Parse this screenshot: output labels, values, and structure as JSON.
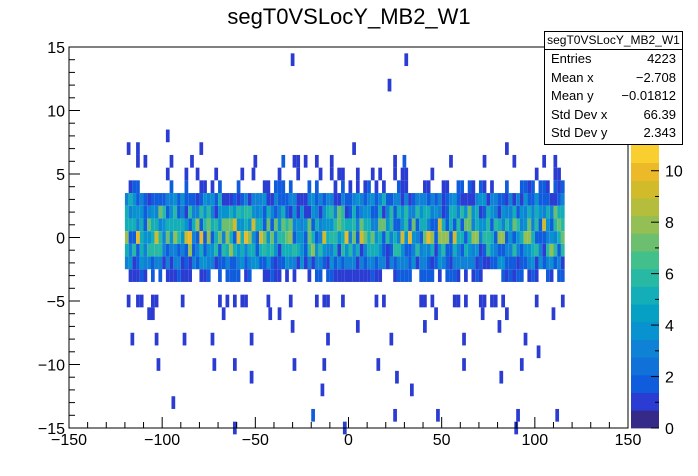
{
  "chart_data": {
    "type": "heatmap",
    "title": "segT0VSLocY_MB2_W1",
    "xlabel": "",
    "ylabel": "",
    "xlim": [
      -150,
      150
    ],
    "ylim": [
      -15,
      15
    ],
    "zlim": [
      0,
      11
    ],
    "x_ticks": [
      -150,
      -100,
      -50,
      0,
      50,
      100,
      150
    ],
    "x_tick_labels": [
      "−150",
      "−100",
      "−50",
      "0",
      "50",
      "100",
      "150"
    ],
    "y_ticks": [
      -15,
      -10,
      -5,
      0,
      5,
      10,
      15
    ],
    "y_tick_labels": [
      "−15",
      "−10",
      "−5",
      "0",
      "5",
      "10",
      "15"
    ],
    "z_ticks": [
      0,
      2,
      4,
      6,
      8,
      10
    ],
    "z_tick_labels": [
      "0",
      "2",
      "4",
      "6",
      "8",
      "10"
    ],
    "bin_width_x": 2,
    "bin_width_y": 1,
    "core_x_range": [
      -120,
      115
    ],
    "band_profile": [
      {
        "y": 1,
        "mean": 4.5
      },
      {
        "y": 0,
        "mean": 5.2
      },
      {
        "y": 2,
        "mean": 3.6
      },
      {
        "y": -1,
        "mean": 3.8
      },
      {
        "y": 3,
        "mean": 2.4
      },
      {
        "y": -2,
        "mean": 2.2
      },
      {
        "y": -3,
        "mean": 1.3
      },
      {
        "y": 4,
        "mean": 1.0
      }
    ],
    "sparse_bins": [
      {
        "x": -119,
        "y": 7,
        "z": 1
      },
      {
        "x": -114,
        "y": 7,
        "z": 1
      },
      {
        "x": -98,
        "y": 8,
        "z": 1
      },
      {
        "x": -85,
        "y": 6,
        "z": 1
      },
      {
        "x": -80,
        "y": 7,
        "z": 1
      },
      {
        "x": -51,
        "y": 6,
        "z": 1
      },
      {
        "x": -36,
        "y": 6,
        "z": 2
      },
      {
        "x": -24,
        "y": 6,
        "z": 1
      },
      {
        "x": 2,
        "y": 7,
        "z": 1
      },
      {
        "x": 29,
        "y": 6,
        "z": 2
      },
      {
        "x": 72,
        "y": 6,
        "z": 1
      },
      {
        "x": 84,
        "y": 7,
        "z": 1
      },
      {
        "x": 110,
        "y": 6,
        "z": 1
      },
      {
        "x": -31,
        "y": 14,
        "z": 1
      },
      {
        "x": 30,
        "y": 14,
        "z": 1
      },
      {
        "x": 21,
        "y": 12,
        "z": 1
      },
      {
        "x": -119,
        "y": -5,
        "z": 1
      },
      {
        "x": -108,
        "y": -6,
        "z": 1
      },
      {
        "x": -68,
        "y": -6,
        "z": 1
      },
      {
        "x": -43,
        "y": -6,
        "z": 1
      },
      {
        "x": 46,
        "y": -6,
        "z": 1
      },
      {
        "x": 71,
        "y": -6,
        "z": 1
      },
      {
        "x": 109,
        "y": -6,
        "z": 1
      },
      {
        "x": -117,
        "y": -8,
        "z": 1
      },
      {
        "x": -104,
        "y": -8,
        "z": 1
      },
      {
        "x": -89,
        "y": -8,
        "z": 1
      },
      {
        "x": -74,
        "y": -8,
        "z": 1
      },
      {
        "x": -53,
        "y": -8,
        "z": 1
      },
      {
        "x": -31,
        "y": -7,
        "z": 1
      },
      {
        "x": -12,
        "y": -8,
        "z": 1
      },
      {
        "x": 4,
        "y": -7,
        "z": 1
      },
      {
        "x": 22,
        "y": -8,
        "z": 1
      },
      {
        "x": 40,
        "y": -7,
        "z": 1
      },
      {
        "x": 61,
        "y": -8,
        "z": 1
      },
      {
        "x": 80,
        "y": -7,
        "z": 1
      },
      {
        "x": 94,
        "y": -8,
        "z": 1
      },
      {
        "x": -103,
        "y": -10,
        "z": 1
      },
      {
        "x": -73,
        "y": -10,
        "z": 1
      },
      {
        "x": -62,
        "y": -10,
        "z": 1
      },
      {
        "x": -30,
        "y": -10,
        "z": 1
      },
      {
        "x": -14,
        "y": -10,
        "z": 1
      },
      {
        "x": 15,
        "y": -10,
        "z": 1
      },
      {
        "x": 61,
        "y": -10,
        "z": 1
      },
      {
        "x": 92,
        "y": -10,
        "z": 1
      },
      {
        "x": 101,
        "y": -9,
        "z": 1
      },
      {
        "x": -53,
        "y": -11,
        "z": 1
      },
      {
        "x": 25,
        "y": -11,
        "z": 1
      },
      {
        "x": 81,
        "y": -11,
        "z": 1
      },
      {
        "x": -15,
        "y": -12,
        "z": 1
      },
      {
        "x": 33,
        "y": -12,
        "z": 1
      },
      {
        "x": -95,
        "y": -13,
        "z": 1
      },
      {
        "x": -20,
        "y": -14,
        "z": 2
      },
      {
        "x": 24,
        "y": -14,
        "z": 1
      },
      {
        "x": 47,
        "y": -14,
        "z": 1
      },
      {
        "x": 90,
        "y": -14,
        "z": 1
      },
      {
        "x": 111,
        "y": -14,
        "z": 1
      },
      {
        "x": -62,
        "y": -15,
        "z": 1
      },
      {
        "x": -3,
        "y": -15,
        "z": 1
      },
      {
        "x": 89,
        "y": -15,
        "z": 1
      }
    ]
  },
  "stats": {
    "title": "segT0VSLocY_MB2_W1",
    "rows": [
      {
        "label": "Entries",
        "value": "4223"
      },
      {
        "label": "Mean x",
        "value": "−2.708"
      },
      {
        "label": "Mean y",
        "value": "−0.01812"
      },
      {
        "label": "Std Dev x",
        "value": "66.39"
      },
      {
        "label": "Std Dev y",
        "value": "2.343"
      }
    ]
  },
  "colors": {
    "palette": [
      "#352a87",
      "#2a3cd1",
      "#0f5cdd",
      "#1072d9",
      "#0f82d6",
      "#0892d0",
      "#05a0c4",
      "#13aeb7",
      "#28b9a4",
      "#43bf8b",
      "#6bbf6e",
      "#93bf54",
      "#b4bd3c",
      "#d1bb2b",
      "#ecb928",
      "#f9cf30"
    ]
  }
}
